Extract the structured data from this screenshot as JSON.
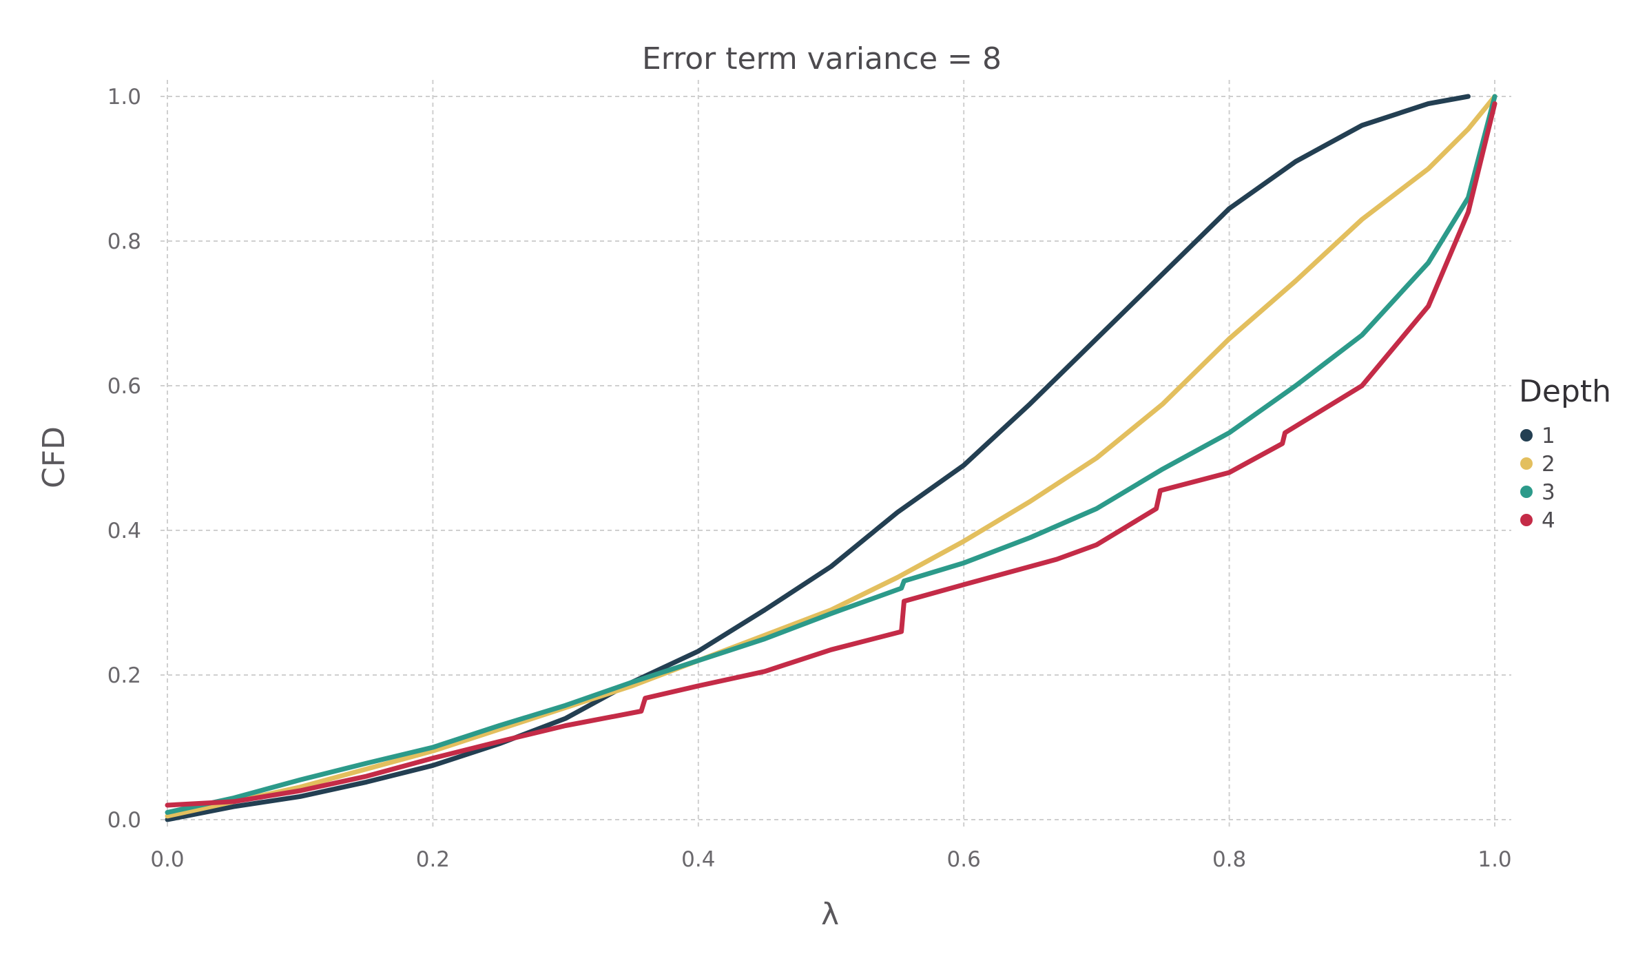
{
  "chart_data": {
    "type": "line",
    "title": "Error term variance = 8",
    "xlabel": "λ",
    "ylabel": "CFD",
    "xlim": [
      0.0,
      1.0
    ],
    "ylim": [
      0.0,
      1.0
    ],
    "xticks": [
      "0.0",
      "0.2",
      "0.4",
      "0.6",
      "0.8",
      "1.0"
    ],
    "yticks": [
      "0.0",
      "0.2",
      "0.4",
      "0.6",
      "0.8",
      "1.0"
    ],
    "grid": true,
    "legend": {
      "title": "Depth",
      "position": "right"
    },
    "series": [
      {
        "name": "1",
        "color": "#233f52",
        "points": [
          [
            0.0,
            0.0
          ],
          [
            0.05,
            0.018
          ],
          [
            0.1,
            0.032
          ],
          [
            0.15,
            0.052
          ],
          [
            0.2,
            0.075
          ],
          [
            0.25,
            0.105
          ],
          [
            0.3,
            0.14
          ],
          [
            0.35,
            0.19
          ],
          [
            0.4,
            0.233
          ],
          [
            0.45,
            0.29
          ],
          [
            0.5,
            0.35
          ],
          [
            0.55,
            0.425
          ],
          [
            0.6,
            0.49
          ],
          [
            0.65,
            0.575
          ],
          [
            0.7,
            0.665
          ],
          [
            0.75,
            0.755
          ],
          [
            0.8,
            0.845
          ],
          [
            0.85,
            0.91
          ],
          [
            0.9,
            0.96
          ],
          [
            0.95,
            0.99
          ],
          [
            0.98,
            1.0
          ]
        ]
      },
      {
        "name": "2",
        "color": "#e3bf5e",
        "points": [
          [
            0.0,
            0.005
          ],
          [
            0.05,
            0.025
          ],
          [
            0.1,
            0.045
          ],
          [
            0.15,
            0.07
          ],
          [
            0.2,
            0.095
          ],
          [
            0.25,
            0.125
          ],
          [
            0.3,
            0.155
          ],
          [
            0.35,
            0.185
          ],
          [
            0.4,
            0.22
          ],
          [
            0.45,
            0.255
          ],
          [
            0.5,
            0.29
          ],
          [
            0.55,
            0.335
          ],
          [
            0.6,
            0.385
          ],
          [
            0.65,
            0.44
          ],
          [
            0.7,
            0.5
          ],
          [
            0.75,
            0.575
          ],
          [
            0.8,
            0.665
          ],
          [
            0.85,
            0.745
          ],
          [
            0.9,
            0.83
          ],
          [
            0.95,
            0.9
          ],
          [
            0.98,
            0.955
          ],
          [
            1.0,
            1.0
          ]
        ]
      },
      {
        "name": "3",
        "color": "#2c9a8a",
        "points": [
          [
            0.0,
            0.01
          ],
          [
            0.05,
            0.03
          ],
          [
            0.1,
            0.055
          ],
          [
            0.15,
            0.078
          ],
          [
            0.2,
            0.1
          ],
          [
            0.25,
            0.13
          ],
          [
            0.3,
            0.158
          ],
          [
            0.35,
            0.19
          ],
          [
            0.4,
            0.22
          ],
          [
            0.45,
            0.25
          ],
          [
            0.5,
            0.285
          ],
          [
            0.553,
            0.32
          ],
          [
            0.555,
            0.33
          ],
          [
            0.6,
            0.355
          ],
          [
            0.65,
            0.39
          ],
          [
            0.7,
            0.43
          ],
          [
            0.75,
            0.485
          ],
          [
            0.8,
            0.535
          ],
          [
            0.85,
            0.6
          ],
          [
            0.9,
            0.67
          ],
          [
            0.95,
            0.77
          ],
          [
            0.98,
            0.86
          ],
          [
            1.0,
            1.0
          ]
        ]
      },
      {
        "name": "4",
        "color": "#c42b47",
        "points": [
          [
            0.0,
            0.02
          ],
          [
            0.05,
            0.025
          ],
          [
            0.1,
            0.04
          ],
          [
            0.15,
            0.06
          ],
          [
            0.2,
            0.085
          ],
          [
            0.25,
            0.108
          ],
          [
            0.3,
            0.13
          ],
          [
            0.357,
            0.15
          ],
          [
            0.36,
            0.168
          ],
          [
            0.4,
            0.185
          ],
          [
            0.45,
            0.205
          ],
          [
            0.5,
            0.235
          ],
          [
            0.553,
            0.26
          ],
          [
            0.555,
            0.302
          ],
          [
            0.6,
            0.325
          ],
          [
            0.67,
            0.36
          ],
          [
            0.7,
            0.38
          ],
          [
            0.745,
            0.43
          ],
          [
            0.748,
            0.455
          ],
          [
            0.8,
            0.48
          ],
          [
            0.84,
            0.52
          ],
          [
            0.842,
            0.535
          ],
          [
            0.9,
            0.6
          ],
          [
            0.95,
            0.71
          ],
          [
            0.98,
            0.84
          ],
          [
            1.0,
            0.99
          ]
        ]
      }
    ]
  }
}
